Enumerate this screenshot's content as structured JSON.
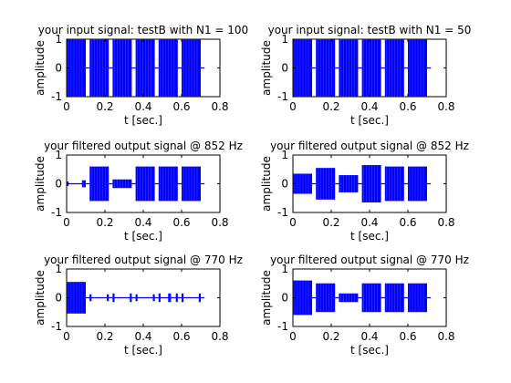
{
  "chart_data": [
    {
      "type": "line",
      "title": "your input signal: testB with N1 = 100",
      "xlabel": "t [sec.]",
      "ylabel": "amplitude",
      "xlim": [
        0,
        0.8
      ],
      "ylim": [
        -1,
        1
      ],
      "xticks": [
        "0",
        "0.2",
        "0.4",
        "0.6",
        "0.8"
      ],
      "yticks": [
        "-1",
        "0",
        "1"
      ],
      "color": "#0000ff",
      "series": [
        {
          "bursts": [
            {
              "t0": 0.0,
              "t1": 0.1,
              "amplitude": 1.0
            },
            {
              "t0": 0.12,
              "t1": 0.22,
              "amplitude": 1.0
            },
            {
              "t0": 0.24,
              "t1": 0.34,
              "amplitude": 1.0
            },
            {
              "t0": 0.36,
              "t1": 0.46,
              "amplitude": 1.0
            },
            {
              "t0": 0.48,
              "t1": 0.58,
              "amplitude": 1.0
            },
            {
              "t0": 0.6,
              "t1": 0.7,
              "amplitude": 1.0
            }
          ],
          "t_end": 0.72
        }
      ]
    },
    {
      "type": "line",
      "title": "your input signal: testB with N1 = 50",
      "xlabel": "t [sec.]",
      "ylabel": "amplitude",
      "xlim": [
        0,
        0.8
      ],
      "ylim": [
        -1,
        1
      ],
      "xticks": [
        "0",
        "0.2",
        "0.4",
        "0.6",
        "0.8"
      ],
      "yticks": [
        "-1",
        "0",
        "1"
      ],
      "color": "#0000ff",
      "series": [
        {
          "bursts": [
            {
              "t0": 0.0,
              "t1": 0.1,
              "amplitude": 1.0
            },
            {
              "t0": 0.12,
              "t1": 0.22,
              "amplitude": 1.0
            },
            {
              "t0": 0.24,
              "t1": 0.34,
              "amplitude": 1.0
            },
            {
              "t0": 0.36,
              "t1": 0.46,
              "amplitude": 1.0
            },
            {
              "t0": 0.48,
              "t1": 0.58,
              "amplitude": 1.0
            },
            {
              "t0": 0.6,
              "t1": 0.7,
              "amplitude": 1.0
            }
          ],
          "t_end": 0.72
        }
      ]
    },
    {
      "type": "line",
      "title": "your filtered output signal @ 852 Hz",
      "xlabel": "t [sec.]",
      "ylabel": "amplitude",
      "xlim": [
        0,
        0.8
      ],
      "ylim": [
        -1,
        1
      ],
      "xticks": [
        "0",
        "0.2",
        "0.4",
        "0.6",
        "0.8"
      ],
      "yticks": [
        "-1",
        "0",
        "1"
      ],
      "color": "#0000ff",
      "series": [
        {
          "bursts": [
            {
              "t0": 0.0,
              "t1": 0.01,
              "amplitude": 0.08
            },
            {
              "t0": 0.08,
              "t1": 0.1,
              "amplitude": 0.12
            },
            {
              "t0": 0.12,
              "t1": 0.22,
              "amplitude": 0.6
            },
            {
              "t0": 0.24,
              "t1": 0.34,
              "amplitude": 0.15
            },
            {
              "t0": 0.36,
              "t1": 0.46,
              "amplitude": 0.6
            },
            {
              "t0": 0.48,
              "t1": 0.58,
              "amplitude": 0.6
            },
            {
              "t0": 0.6,
              "t1": 0.7,
              "amplitude": 0.6
            }
          ],
          "t_end": 0.72
        }
      ]
    },
    {
      "type": "line",
      "title": "your filtered output signal @ 852 Hz",
      "xlabel": "t [sec.]",
      "ylabel": "amplitude",
      "xlim": [
        0,
        0.8
      ],
      "ylim": [
        -1,
        1
      ],
      "xticks": [
        "0",
        "0.2",
        "0.4",
        "0.6",
        "0.8"
      ],
      "yticks": [
        "-1",
        "0",
        "1"
      ],
      "color": "#0000ff",
      "series": [
        {
          "bursts": [
            {
              "t0": 0.0,
              "t1": 0.1,
              "amplitude": 0.35
            },
            {
              "t0": 0.12,
              "t1": 0.22,
              "amplitude": 0.55
            },
            {
              "t0": 0.24,
              "t1": 0.34,
              "amplitude": 0.3
            },
            {
              "t0": 0.36,
              "t1": 0.46,
              "amplitude": 0.65
            },
            {
              "t0": 0.48,
              "t1": 0.58,
              "amplitude": 0.6
            },
            {
              "t0": 0.6,
              "t1": 0.7,
              "amplitude": 0.6
            }
          ],
          "t_end": 0.72
        }
      ]
    },
    {
      "type": "line",
      "title": "your filtered output signal @ 770 Hz",
      "xlabel": "t [sec.]",
      "ylabel": "amplitude",
      "xlim": [
        0,
        0.8
      ],
      "ylim": [
        -1,
        1
      ],
      "xticks": [
        "0",
        "0.2",
        "0.4",
        "0.6",
        "0.8"
      ],
      "yticks": [
        "-1",
        "0",
        "1"
      ],
      "color": "#0000ff",
      "series": [
        {
          "bursts": [
            {
              "t0": 0.0,
              "t1": 0.1,
              "amplitude": 0.55
            },
            {
              "t0": 0.12,
              "t1": 0.13,
              "amplitude": 0.12
            },
            {
              "t0": 0.21,
              "t1": 0.22,
              "amplitude": 0.12
            },
            {
              "t0": 0.24,
              "t1": 0.25,
              "amplitude": 0.15
            },
            {
              "t0": 0.33,
              "t1": 0.34,
              "amplitude": 0.15
            },
            {
              "t0": 0.36,
              "t1": 0.37,
              "amplitude": 0.12
            },
            {
              "t0": 0.45,
              "t1": 0.46,
              "amplitude": 0.12
            },
            {
              "t0": 0.48,
              "t1": 0.49,
              "amplitude": 0.15
            },
            {
              "t0": 0.53,
              "t1": 0.545,
              "amplitude": 0.15
            },
            {
              "t0": 0.57,
              "t1": 0.58,
              "amplitude": 0.15
            },
            {
              "t0": 0.6,
              "t1": 0.61,
              "amplitude": 0.15
            },
            {
              "t0": 0.69,
              "t1": 0.7,
              "amplitude": 0.15
            }
          ],
          "t_end": 0.72
        }
      ]
    },
    {
      "type": "line",
      "title": "your filtered output signal @ 770 Hz",
      "xlabel": "t [sec.]",
      "ylabel": "amplitude",
      "xlim": [
        0,
        0.8
      ],
      "ylim": [
        -1,
        1
      ],
      "xticks": [
        "0",
        "0.2",
        "0.4",
        "0.6",
        "0.8"
      ],
      "yticks": [
        "-1",
        "0",
        "1"
      ],
      "color": "#0000ff",
      "series": [
        {
          "bursts": [
            {
              "t0": 0.0,
              "t1": 0.1,
              "amplitude": 0.6
            },
            {
              "t0": 0.12,
              "t1": 0.22,
              "amplitude": 0.5
            },
            {
              "t0": 0.24,
              "t1": 0.34,
              "amplitude": 0.15
            },
            {
              "t0": 0.36,
              "t1": 0.46,
              "amplitude": 0.5
            },
            {
              "t0": 0.48,
              "t1": 0.58,
              "amplitude": 0.5
            },
            {
              "t0": 0.6,
              "t1": 0.7,
              "amplitude": 0.5
            }
          ],
          "t_end": 0.72
        }
      ]
    }
  ]
}
